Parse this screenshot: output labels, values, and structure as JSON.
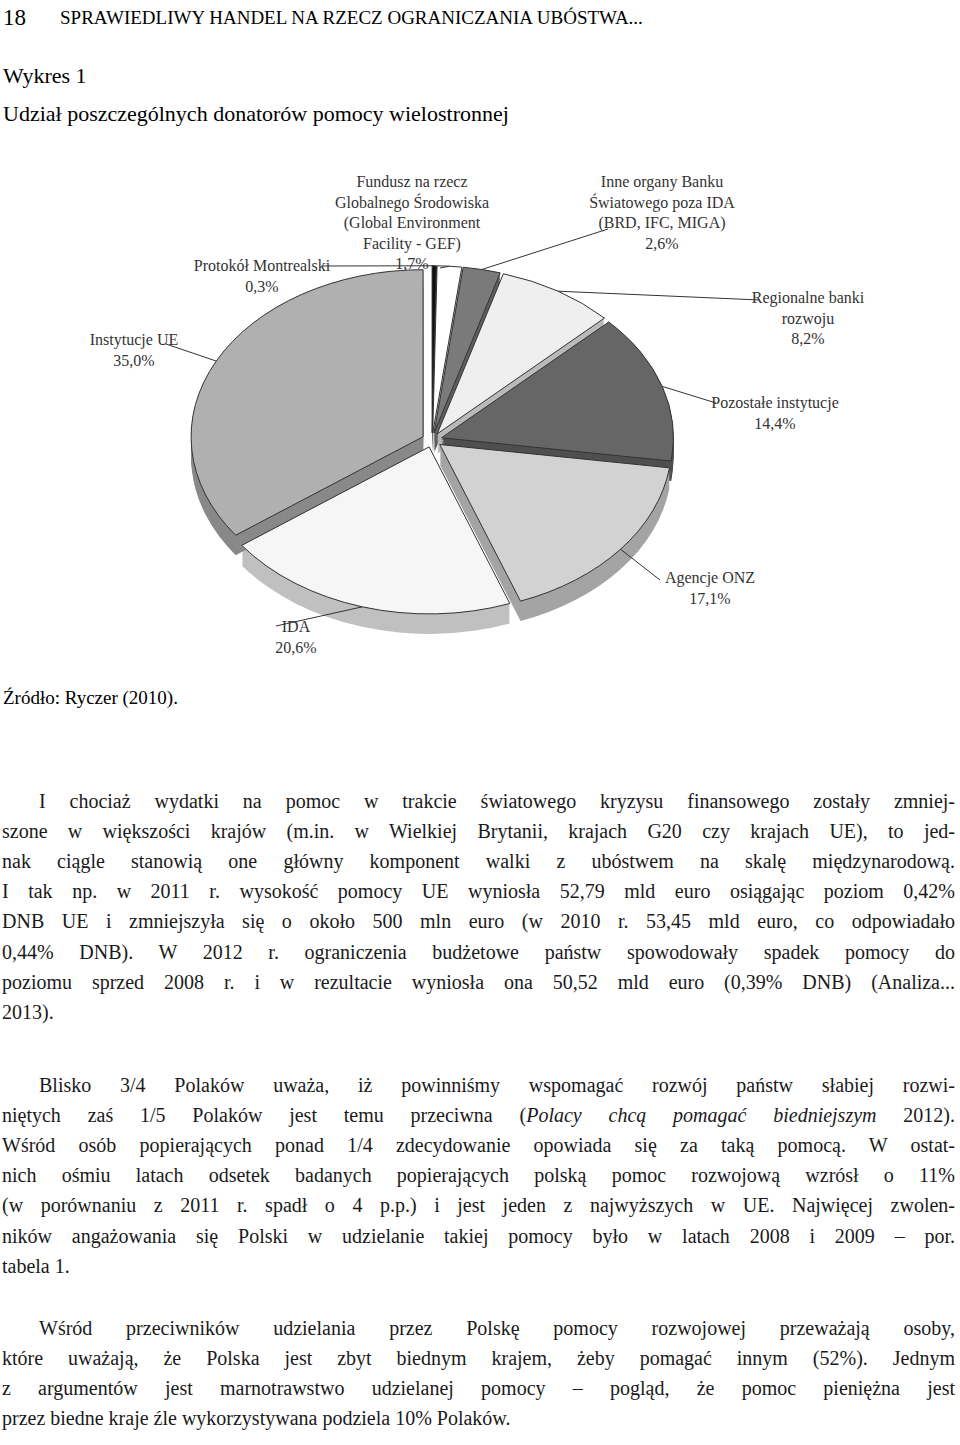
{
  "header": {
    "page_number": "18",
    "running_title": "SPRAWIEDLIWY HANDEL NA RZECZ OGRANICZANIA UBÓSTWA..."
  },
  "figure": {
    "label": "Wykres 1",
    "source": "Źródło: Ryczer (2010)."
  },
  "chart_data": {
    "type": "pie",
    "title": "Udział poszczególnych donatorów pomocy wielostronnej",
    "categories": [
      "Protokół Montrealski",
      "Fundusz na rzecz\nGlobalnego Środowiska\n(Global Environment\nFacility - GEF)",
      "Inne organy Banku\nŚwiatowego poza IDA\n(BRD, IFC, MIGA)",
      "Regionalne banki\nrozwoju",
      "Pozostałe instytucje",
      "Agencje ONZ",
      "IDA",
      "Instytucje UE"
    ],
    "values": [
      0.3,
      1.7,
      2.6,
      8.2,
      14.4,
      17.1,
      20.6,
      35.0
    ],
    "value_labels": [
      "0,3%",
      "1,7%",
      "2,6%",
      "8,2%",
      "14,4%",
      "17,1%",
      "20,6%",
      "35,0%"
    ],
    "colors": [
      "#111111",
      "#ffffff",
      "#7a7a7a",
      "#efefef",
      "#666666",
      "#d2d2d2",
      "#f6f6f6",
      "#b0b0b0"
    ],
    "data_labels": true
  },
  "paragraphs": [
    {
      "lines": [
        "I chociaż wydatki na pomoc w trakcie światowego kryzysu finansowego zostały zmniej-",
        "szone w większości krajów (m.in. w Wielkiej Brytanii, krajach G20 czy krajach UE), to jed-",
        "nak ciągle stanowią one główny komponent walki z ubóstwem na skalę międzynarodową.",
        "I tak np. w 2011 r. wysokość pomocy UE wyniosła 52,79 mld euro osiągając poziom 0,42%",
        "DNB UE i zmniejszyła się o około 500 mln euro (w 2010 r. 53,45 mld euro, co odpowiadało",
        "0,44% DNB). W 2012 r. ograniczenia budżetowe państw spowodowały spadek pomocy do",
        "poziomu sprzed 2008 r. i w rezultacie wyniosła ona 50,52 mld euro (0,39% DNB) (Analiza...",
        "2013)."
      ]
    },
    {
      "lines": [
        "Blisko 3/4 Polaków uważa, iż powinniśmy wspomagać rozwój państw słabiej rozwi-",
        [
          "niętych zaś 1/5 Polaków jest temu przeciwna (",
          {
            "italic": "Polacy chcą pomagać biedniejszym"
          },
          " 2012)."
        ],
        "Wśród osób popierających ponad 1/4 zdecydowanie opowiada się za taką pomocą. W ostat-",
        "nich ośmiu latach odsetek badanych popierających polską pomoc rozwojową wzrósł o 11%",
        "(w porównaniu z 2011 r. spadł o 4 p.p.) i jest jeden z najwyższych w UE. Najwięcej zwolen-",
        "ników angażowania się Polski w udzielanie takiej pomocy było w latach 2008 i 2009 – por.",
        "tabela 1."
      ]
    },
    {
      "lines": [
        "Wśród przeciwników udzielania przez Polskę pomocy rozwojowej przeważają osoby,",
        "które uważają, że Polska jest zbyt biednym krajem, żeby pomagać innym (52%). Jednym",
        "z argumentów jest marnotrawstwo udzielanej pomocy – pogląd, że pomoc pieniężna jest",
        "przez biedne kraje źle wykorzystywana podziela 10% Polaków."
      ]
    }
  ]
}
